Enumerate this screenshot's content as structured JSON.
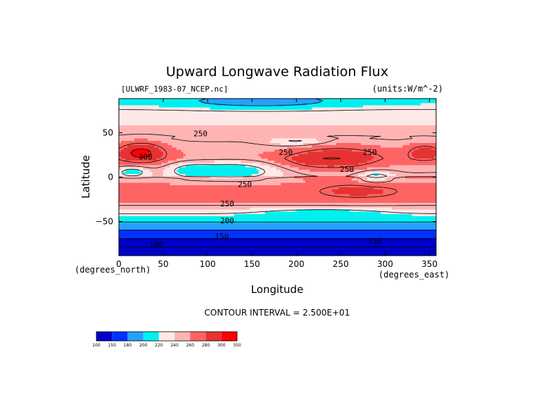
{
  "chart_data": {
    "type": "heatmap",
    "title": "Upward Longwave Radiation Flux",
    "subtitle_left": "[ULWRF_1983-07_NCEP.nc]",
    "units": "(units:W/m^-2)",
    "xlabel": "Longitude",
    "ylabel": "Latitude",
    "x_unit_label": "(degrees_north)",
    "x_unit_label_right": "(degrees_east)",
    "xlim": [
      0,
      357.5
    ],
    "ylim": [
      -88.5,
      88.5
    ],
    "x_ticks": [
      0,
      50,
      100,
      150,
      200,
      250,
      300,
      350
    ],
    "x_tick_labels": [
      "0",
      "50",
      "100",
      "150",
      "200",
      "250",
      "300",
      "350"
    ],
    "y_ticks": [
      50,
      0,
      -50
    ],
    "y_tick_labels": [
      "50",
      "0",
      "−50"
    ],
    "contour_interval_text": "CONTOUR INTERVAL = 2.500E+01",
    "contour_labels": [
      {
        "text": "250",
        "lon": 92,
        "lat": 46
      },
      {
        "text": "300",
        "lon": 30,
        "lat": 20
      },
      {
        "text": "250",
        "lon": 188,
        "lat": 25
      },
      {
        "text": "250",
        "lon": 283,
        "lat": 25
      },
      {
        "text": "250",
        "lon": 257,
        "lat": 6
      },
      {
        "text": "250",
        "lon": 142,
        "lat": -11
      },
      {
        "text": "250",
        "lon": 122,
        "lat": -33
      },
      {
        "text": "200",
        "lon": 122,
        "lat": -52
      },
      {
        "text": "150",
        "lon": 116,
        "lat": -70
      },
      {
        "text": "100",
        "lon": 42,
        "lat": -79
      },
      {
        "text": "150",
        "lon": 288,
        "lat": -75
      }
    ],
    "colorbar": {
      "levels": [
        "100",
        "150",
        "180",
        "200",
        "220",
        "240",
        "260",
        "280",
        "300",
        "350"
      ],
      "colors": [
        "#0000c8",
        "#0032ff",
        "#28a0ff",
        "#00f0f0",
        "#ffe8e8",
        "#ffb4b4",
        "#ff6464",
        "#e63232",
        "#ff0000"
      ]
    },
    "grid": false
  }
}
